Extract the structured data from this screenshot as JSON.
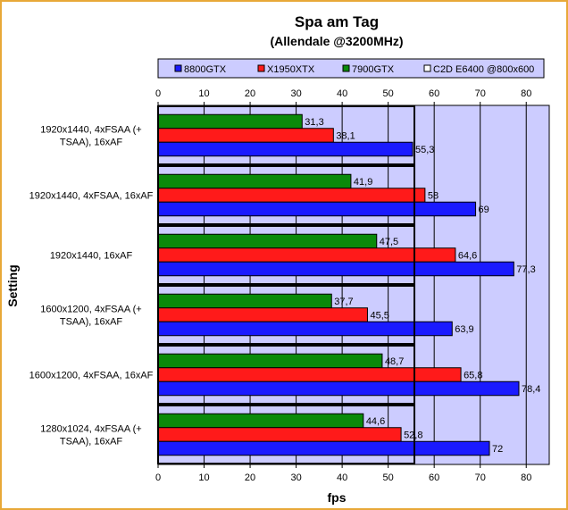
{
  "chart_data": {
    "type": "bar",
    "orientation": "horizontal",
    "title": "Spa am Tag",
    "subtitle": "(Allendale @3200MHz)",
    "xlabel": "fps",
    "ylabel": "Setting",
    "xlim": [
      0,
      85
    ],
    "xticks": [
      0,
      10,
      20,
      30,
      40,
      50,
      60,
      70,
      80
    ],
    "grid": true,
    "legend_position": "top",
    "categories": [
      "1920x1440, 4xFSAA (+ TSAA), 16xAF",
      "1920x1440, 4xFSAA, 16xAF",
      "1920x1440, 16xAF",
      "1600x1200, 4xFSAA (+ TSAA), 16xAF",
      "1600x1200, 4xFSAA, 16xAF",
      "1280x1024, 4xFSAA (+ TSAA), 16xAF"
    ],
    "series": [
      {
        "name": "8800GTX",
        "color": "#1a1aff",
        "values": [
          55.3,
          69,
          77.3,
          63.9,
          78.4,
          72
        ],
        "labels": [
          "55,3",
          "69",
          "77,3",
          "63,9",
          "78,4",
          "72"
        ]
      },
      {
        "name": "X1950XTX",
        "color": "#ff1a1a",
        "values": [
          38.1,
          58,
          64.6,
          45.5,
          65.8,
          52.8
        ],
        "labels": [
          "38,1",
          "58",
          "64,6",
          "45,5",
          "65,8",
          "52,8"
        ]
      },
      {
        "name": "7900GTX",
        "color": "#0a8a0a",
        "values": [
          31.3,
          41.9,
          47.5,
          37.7,
          48.7,
          44.6
        ],
        "labels": [
          "31,3",
          "41,9",
          "47,5",
          "37,7",
          "48,7",
          "44,6"
        ]
      },
      {
        "name": "C2D E6400 @800x600",
        "color": "#ffffff",
        "values": [
          55.7,
          55.7,
          55.7,
          55.7,
          55.7,
          55.7
        ]
      }
    ]
  },
  "colors": {
    "plot_background": "#ccccff",
    "legend_background": "#ccccff",
    "frame_border": "#e8a838"
  }
}
